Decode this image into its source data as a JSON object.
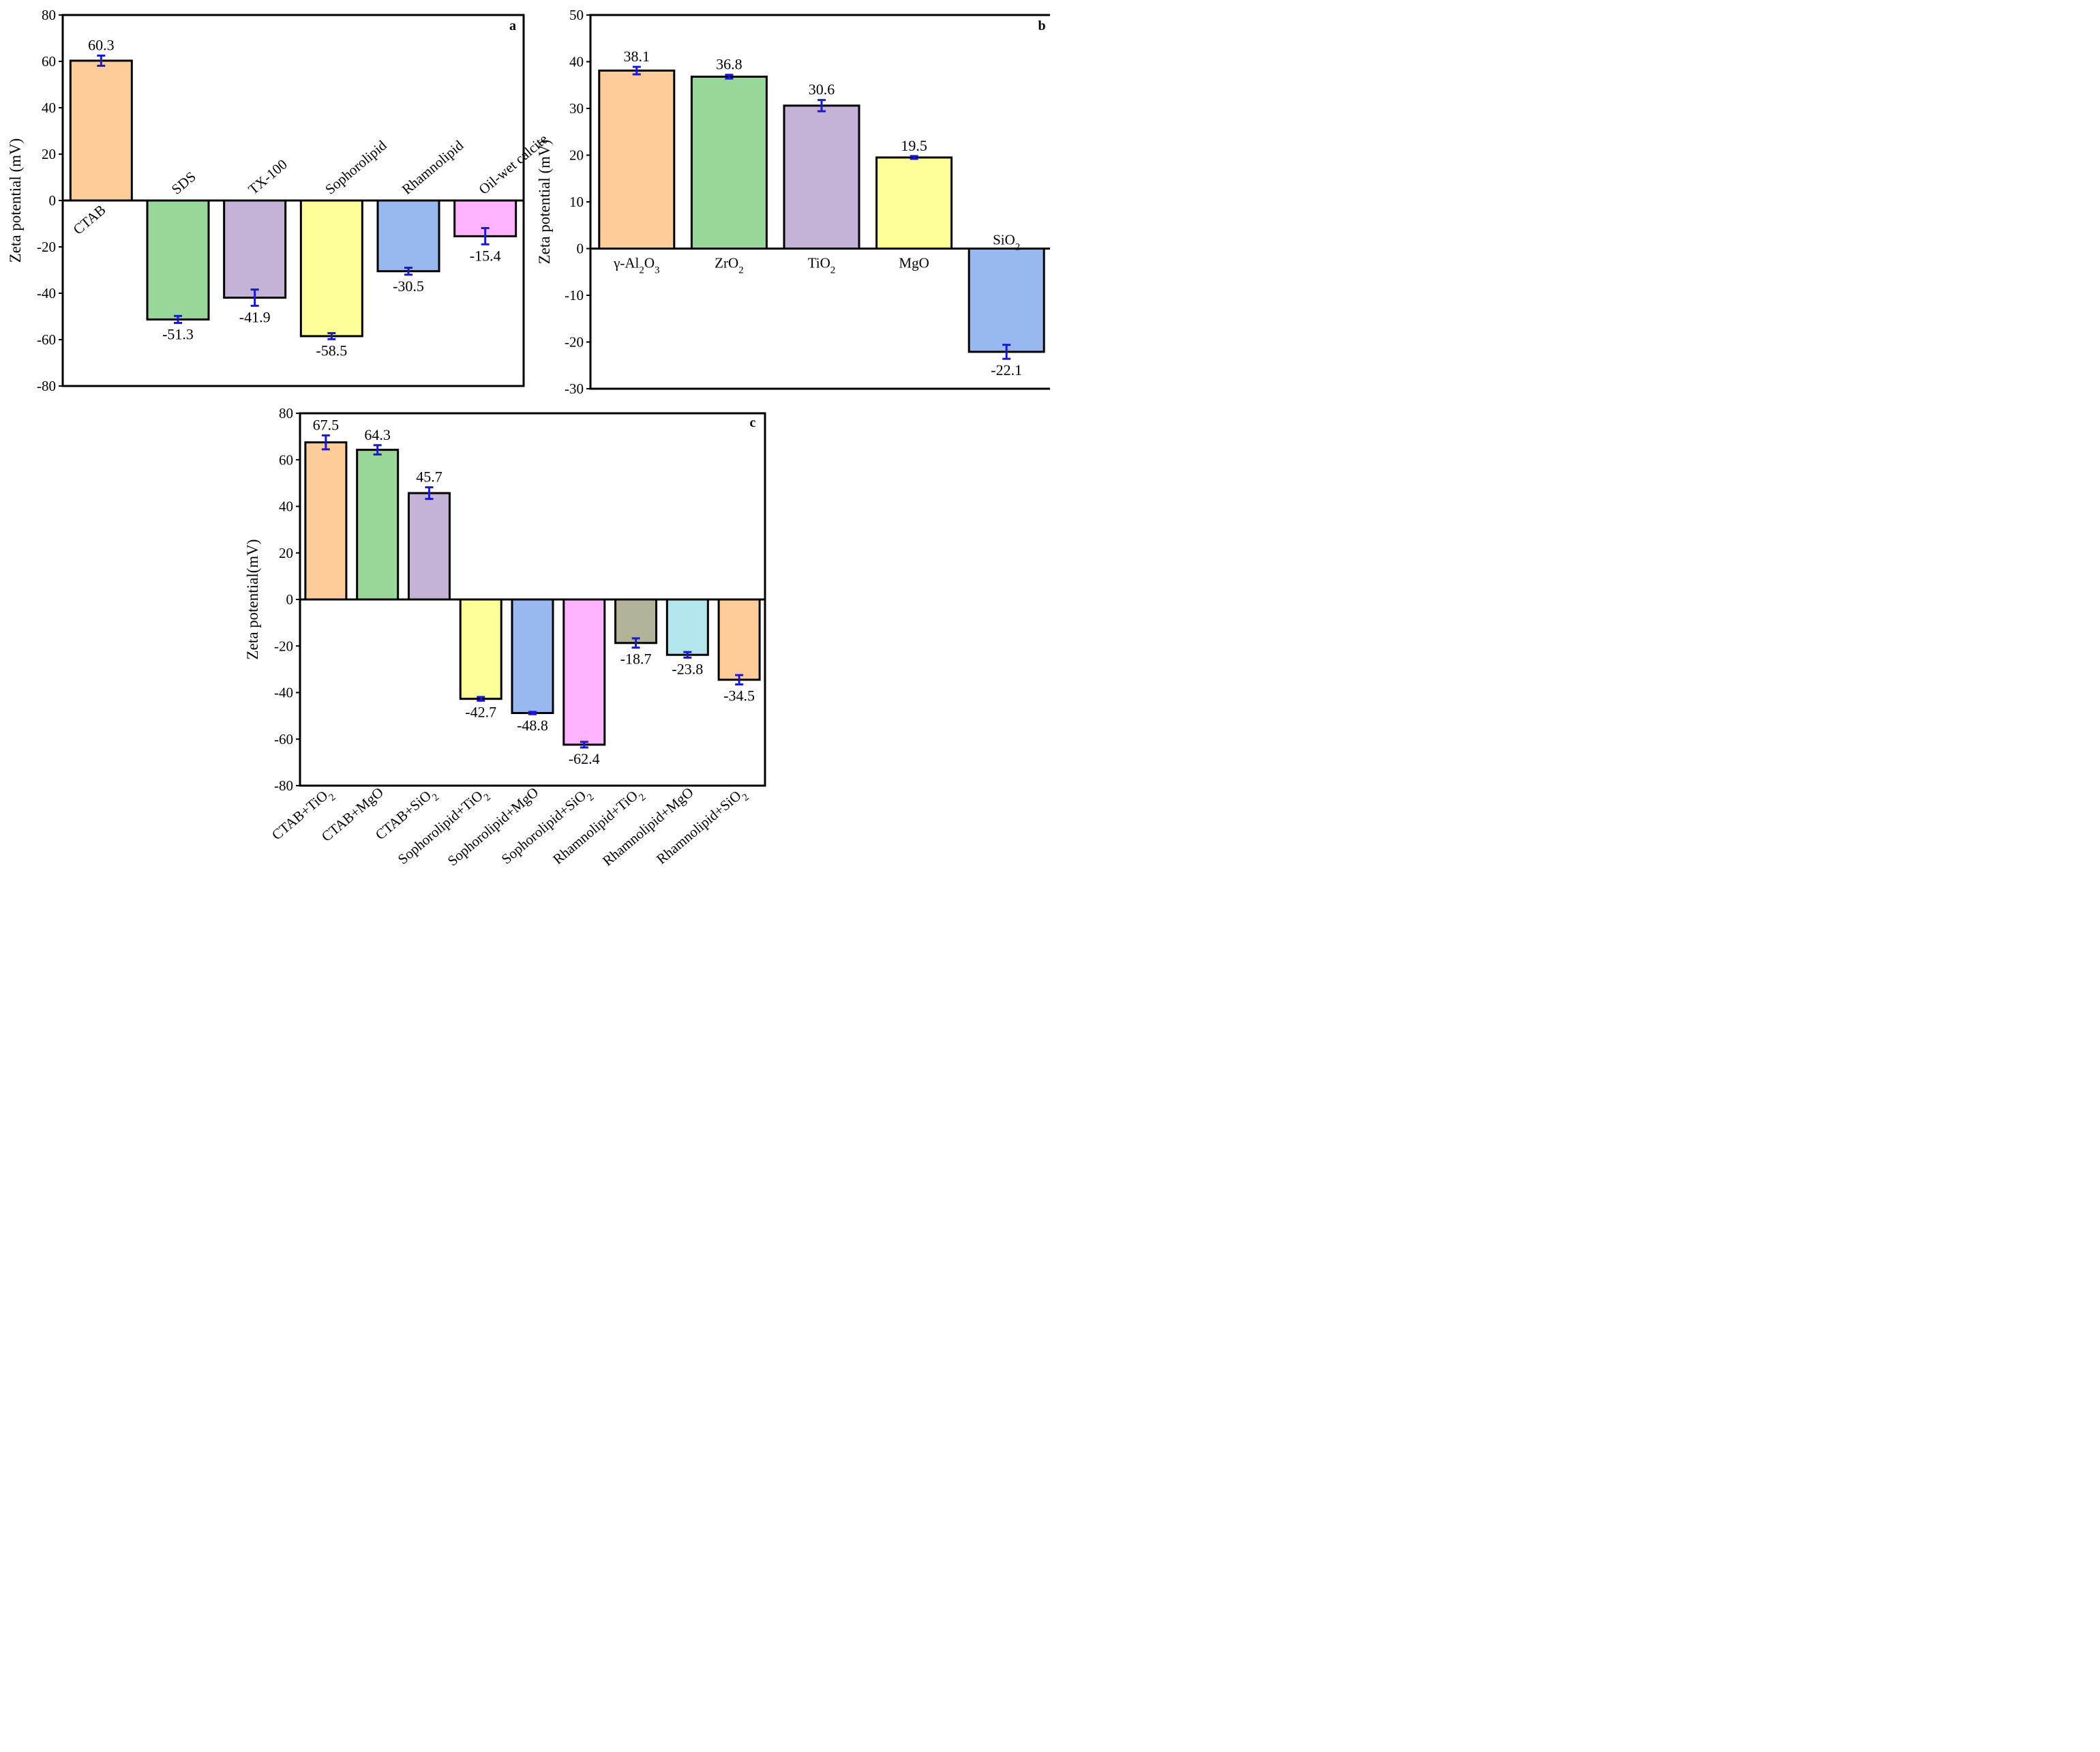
{
  "chart_data": [
    {
      "type": "bar",
      "panel": "a",
      "ylabel": "Zeta potential (mV)",
      "ylim": [
        -80,
        80
      ],
      "yticks": [
        80,
        60,
        40,
        20,
        0,
        -20,
        -40,
        -60,
        -80
      ],
      "categories": [
        "CTAB",
        "SDS",
        "TX-100",
        "Sophorolipid",
        "Rhamnolipid",
        "Oil-wet calcite"
      ],
      "values": [
        60.3,
        -51.3,
        -41.9,
        -58.5,
        -30.5,
        -15.4
      ],
      "value_labels": [
        "60.3",
        "-51.3",
        "-41.9",
        "-58.5",
        "-30.5",
        "-15.4"
      ],
      "errors": [
        2.2,
        1.5,
        3.5,
        1.3,
        1.5,
        3.5
      ],
      "colors": [
        "#fdcc99",
        "#99d699",
        "#c4b3d6",
        "#ffff99",
        "#99b8f0",
        "#ffb3ff"
      ]
    },
    {
      "type": "bar",
      "panel": "b",
      "ylabel": "Zeta potential (mV)",
      "ylim": [
        -30,
        50
      ],
      "yticks": [
        50,
        40,
        30,
        20,
        10,
        0,
        -10,
        -20,
        -30
      ],
      "categories": [
        "γ-Al2O3",
        "ZrO2",
        "TiO2",
        "MgO",
        "SiO2"
      ],
      "values": [
        38.1,
        36.8,
        30.6,
        19.5,
        -22.1
      ],
      "value_labels": [
        "38.1",
        "36.8",
        "30.6",
        "19.5",
        "-22.1"
      ],
      "errors": [
        0.8,
        0.4,
        1.2,
        0.3,
        1.5
      ],
      "colors": [
        "#fdcc99",
        "#99d699",
        "#c4b3d6",
        "#ffff99",
        "#99b8f0"
      ]
    },
    {
      "type": "bar",
      "panel": "c",
      "ylabel": "Zeta potential(mV)",
      "ylim": [
        -80,
        80
      ],
      "yticks": [
        80,
        60,
        40,
        20,
        0,
        -20,
        -40,
        -60,
        -80
      ],
      "categories": [
        "CTAB+TiO2",
        "CTAB+MgO",
        "CTAB+SiO2",
        "Sophorolipid+TiO2",
        "Sophorolipid+MgO",
        "Sophorolipid+SiO2",
        "Rhamnolipid+TiO2",
        "Rhamnolipid+MgO",
        "Rhamnolipid+SiO2"
      ],
      "values": [
        67.5,
        64.3,
        45.7,
        -42.7,
        -48.8,
        -62.4,
        -18.7,
        -23.8,
        -34.5
      ],
      "value_labels": [
        "67.5",
        "64.3",
        "45.7",
        "-42.7",
        "-48.8",
        "-62.4",
        "-18.7",
        "-23.8",
        "-34.5"
      ],
      "errors": [
        3.0,
        2.0,
        2.5,
        0.8,
        0.5,
        1.2,
        2.0,
        1.2,
        2.0
      ],
      "colors": [
        "#fdcc99",
        "#99d699",
        "#c4b3d6",
        "#ffff99",
        "#99b8f0",
        "#ffb3ff",
        "#b3b399",
        "#b3e6ec",
        "#fdcc99"
      ]
    }
  ]
}
